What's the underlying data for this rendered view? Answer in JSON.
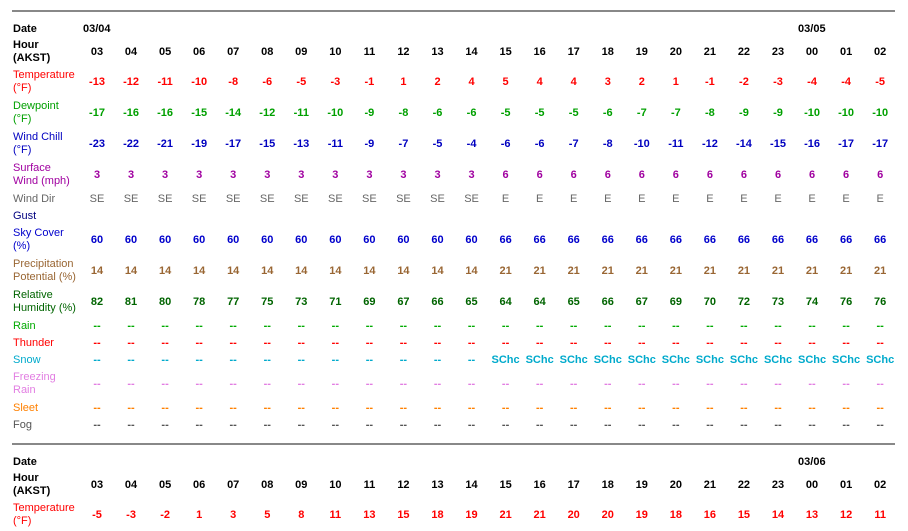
{
  "colors": {
    "black": "#000000",
    "temperature": "#ff0000",
    "dewpoint": "#00a000",
    "windchill": "#0000c0",
    "surface_wind": "#a000a0",
    "wind_dir": "#666666",
    "gust": "#000080",
    "sky": "#0000cc",
    "precip": "#996633",
    "humidity": "#006400",
    "rain": "#00aa00",
    "thunder": "#ff0000",
    "snow": "#00aacc",
    "freezing": "#e27ee2",
    "sleet": "#ff8000",
    "fog": "#555555"
  },
  "blocks": [
    {
      "date_label": "Date",
      "hour_label": "Hour\n(AKST)",
      "dates": [
        {
          "text": "03/04",
          "col": 0
        },
        {
          "text": "03/05",
          "col": 21
        }
      ],
      "hours": [
        "03",
        "04",
        "05",
        "06",
        "07",
        "08",
        "09",
        "10",
        "11",
        "12",
        "13",
        "14",
        "15",
        "16",
        "17",
        "18",
        "19",
        "20",
        "21",
        "22",
        "23",
        "00",
        "01",
        "02"
      ],
      "rows": [
        {
          "key": "temperature",
          "label": "Temperature\n(°F)",
          "color": "temperature",
          "lines": 2,
          "values": [
            "-13",
            "-12",
            "-11",
            "-10",
            "-8",
            "-6",
            "-5",
            "-3",
            "-1",
            "1",
            "2",
            "4",
            "5",
            "4",
            "4",
            "3",
            "2",
            "1",
            "-1",
            "-2",
            "-3",
            "-4",
            "-4",
            "-5"
          ]
        },
        {
          "key": "dewpoint",
          "label": "Dewpoint\n(°F)",
          "color": "dewpoint",
          "lines": 2,
          "values": [
            "-17",
            "-16",
            "-16",
            "-15",
            "-14",
            "-12",
            "-11",
            "-10",
            "-9",
            "-8",
            "-6",
            "-6",
            "-5",
            "-5",
            "-5",
            "-6",
            "-7",
            "-7",
            "-8",
            "-9",
            "-9",
            "-10",
            "-10",
            "-10"
          ]
        },
        {
          "key": "wind_chill",
          "label": "Wind Chill\n(°F)",
          "color": "windchill",
          "lines": 2,
          "values": [
            "-23",
            "-22",
            "-21",
            "-19",
            "-17",
            "-15",
            "-13",
            "-11",
            "-9",
            "-7",
            "-5",
            "-4",
            "-6",
            "-6",
            "-7",
            "-8",
            "-10",
            "-11",
            "-12",
            "-14",
            "-15",
            "-16",
            "-17",
            "-17"
          ]
        },
        {
          "key": "surface_wind",
          "label": "Surface\nWind (mph)",
          "color": "surface_wind",
          "lines": 2,
          "values": [
            "3",
            "3",
            "3",
            "3",
            "3",
            "3",
            "3",
            "3",
            "3",
            "3",
            "3",
            "3",
            "6",
            "6",
            "6",
            "6",
            "6",
            "6",
            "6",
            "6",
            "6",
            "6",
            "6",
            "6"
          ]
        },
        {
          "key": "wind_dir",
          "label": "Wind Dir",
          "color": "wind_dir",
          "lines": 1,
          "normal": true,
          "values": [
            "SE",
            "SE",
            "SE",
            "SE",
            "SE",
            "SE",
            "SE",
            "SE",
            "SE",
            "SE",
            "SE",
            "SE",
            "E",
            "E",
            "E",
            "E",
            "E",
            "E",
            "E",
            "E",
            "E",
            "E",
            "E",
            "E"
          ]
        },
        {
          "key": "gust",
          "label": "Gust",
          "color": "gust",
          "lines": 1,
          "values": []
        },
        {
          "key": "sky_cover",
          "label": "Sky Cover\n(%)",
          "color": "sky",
          "lines": 2,
          "values": [
            "60",
            "60",
            "60",
            "60",
            "60",
            "60",
            "60",
            "60",
            "60",
            "60",
            "60",
            "60",
            "66",
            "66",
            "66",
            "66",
            "66",
            "66",
            "66",
            "66",
            "66",
            "66",
            "66",
            "66"
          ]
        },
        {
          "key": "precip",
          "label": "Precipitation\nPotential (%)",
          "color": "precip",
          "lines": 2,
          "values": [
            "14",
            "14",
            "14",
            "14",
            "14",
            "14",
            "14",
            "14",
            "14",
            "14",
            "14",
            "14",
            "21",
            "21",
            "21",
            "21",
            "21",
            "21",
            "21",
            "21",
            "21",
            "21",
            "21",
            "21"
          ]
        },
        {
          "key": "humidity",
          "label": "Relative\nHumidity (%)",
          "color": "humidity",
          "lines": 2,
          "values": [
            "82",
            "81",
            "80",
            "78",
            "77",
            "75",
            "73",
            "71",
            "69",
            "67",
            "66",
            "65",
            "64",
            "64",
            "65",
            "66",
            "67",
            "69",
            "70",
            "72",
            "73",
            "74",
            "76",
            "76"
          ]
        },
        {
          "key": "rain",
          "label": "Rain",
          "color": "rain",
          "lines": 1,
          "values": [
            "--",
            "--",
            "--",
            "--",
            "--",
            "--",
            "--",
            "--",
            "--",
            "--",
            "--",
            "--",
            "--",
            "--",
            "--",
            "--",
            "--",
            "--",
            "--",
            "--",
            "--",
            "--",
            "--",
            "--"
          ]
        },
        {
          "key": "thunder",
          "label": "Thunder",
          "color": "thunder",
          "lines": 1,
          "values": [
            "--",
            "--",
            "--",
            "--",
            "--",
            "--",
            "--",
            "--",
            "--",
            "--",
            "--",
            "--",
            "--",
            "--",
            "--",
            "--",
            "--",
            "--",
            "--",
            "--",
            "--",
            "--",
            "--",
            "--"
          ]
        },
        {
          "key": "snow",
          "label": "Snow",
          "color": "snow",
          "lines": 1,
          "values": [
            "--",
            "--",
            "--",
            "--",
            "--",
            "--",
            "--",
            "--",
            "--",
            "--",
            "--",
            "--",
            "SChc",
            "SChc",
            "SChc",
            "SChc",
            "SChc",
            "SChc",
            "SChc",
            "SChc",
            "SChc",
            "SChc",
            "SChc",
            "SChc"
          ]
        },
        {
          "key": "freezing_rain",
          "label": "Freezing\nRain",
          "color": "freezing",
          "lines": 2,
          "values": [
            "--",
            "--",
            "--",
            "--",
            "--",
            "--",
            "--",
            "--",
            "--",
            "--",
            "--",
            "--",
            "--",
            "--",
            "--",
            "--",
            "--",
            "--",
            "--",
            "--",
            "--",
            "--",
            "--",
            "--"
          ]
        },
        {
          "key": "sleet",
          "label": "Sleet",
          "color": "sleet",
          "lines": 1,
          "values": [
            "--",
            "--",
            "--",
            "--",
            "--",
            "--",
            "--",
            "--",
            "--",
            "--",
            "--",
            "--",
            "--",
            "--",
            "--",
            "--",
            "--",
            "--",
            "--",
            "--",
            "--",
            "--",
            "--",
            "--"
          ]
        },
        {
          "key": "fog",
          "label": "Fog",
          "color": "fog",
          "lines": 1,
          "values": [
            "--",
            "--",
            "--",
            "--",
            "--",
            "--",
            "--",
            "--",
            "--",
            "--",
            "--",
            "--",
            "--",
            "--",
            "--",
            "--",
            "--",
            "--",
            "--",
            "--",
            "--",
            "--",
            "--",
            "--"
          ]
        }
      ]
    },
    {
      "date_label": "Date",
      "hour_label": "Hour\n(AKST)",
      "dates": [
        {
          "text": "03/06",
          "col": 21
        }
      ],
      "hours": [
        "03",
        "04",
        "05",
        "06",
        "07",
        "08",
        "09",
        "10",
        "11",
        "12",
        "13",
        "14",
        "15",
        "16",
        "17",
        "18",
        "19",
        "20",
        "21",
        "22",
        "23",
        "00",
        "01",
        "02"
      ],
      "rows": [
        {
          "key": "temperature",
          "label": "Temperature\n(°F)",
          "color": "temperature",
          "lines": 2,
          "values": [
            "-5",
            "-3",
            "-2",
            "1",
            "3",
            "5",
            "8",
            "11",
            "13",
            "15",
            "18",
            "19",
            "21",
            "21",
            "20",
            "20",
            "19",
            "18",
            "16",
            "15",
            "14",
            "13",
            "12",
            "11"
          ]
        }
      ]
    }
  ]
}
